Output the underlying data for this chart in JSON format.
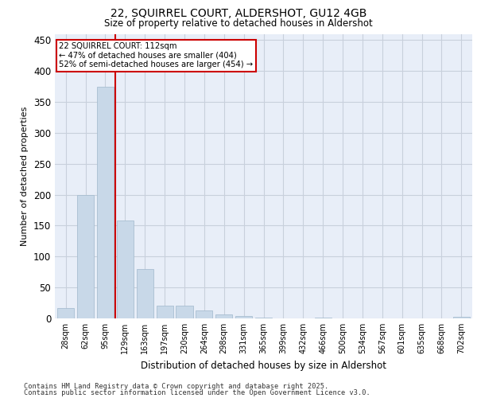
{
  "title_line1": "22, SQUIRREL COURT, ALDERSHOT, GU12 4GB",
  "title_line2": "Size of property relative to detached houses in Aldershot",
  "xlabel": "Distribution of detached houses by size in Aldershot",
  "ylabel": "Number of detached properties",
  "bar_color": "#c8d8e8",
  "bar_edge_color": "#a0b8cc",
  "grid_color": "#c8d0dc",
  "background_color": "#e8eef8",
  "annotation_box_color": "#ffffff",
  "annotation_box_edge": "#cc0000",
  "vline_color": "#cc0000",
  "footer_line1": "Contains HM Land Registry data © Crown copyright and database right 2025.",
  "footer_line2": "Contains public sector information licensed under the Open Government Licence v3.0.",
  "categories": [
    "28sqm",
    "62sqm",
    "95sqm",
    "129sqm",
    "163sqm",
    "197sqm",
    "230sqm",
    "264sqm",
    "298sqm",
    "331sqm",
    "365sqm",
    "399sqm",
    "432sqm",
    "466sqm",
    "500sqm",
    "534sqm",
    "567sqm",
    "601sqm",
    "635sqm",
    "668sqm",
    "702sqm"
  ],
  "values": [
    17,
    200,
    375,
    158,
    80,
    20,
    20,
    13,
    7,
    4,
    1,
    0,
    0,
    1,
    0,
    0,
    0,
    0,
    0,
    0,
    2
  ],
  "vline_position": 2.5,
  "annotation_text_line1": "22 SQUIRREL COURT: 112sqm",
  "annotation_text_line2": "← 47% of detached houses are smaller (404)",
  "annotation_text_line3": "52% of semi-detached houses are larger (454) →",
  "ylim": [
    0,
    460
  ],
  "yticks": [
    0,
    50,
    100,
    150,
    200,
    250,
    300,
    350,
    400,
    450
  ]
}
